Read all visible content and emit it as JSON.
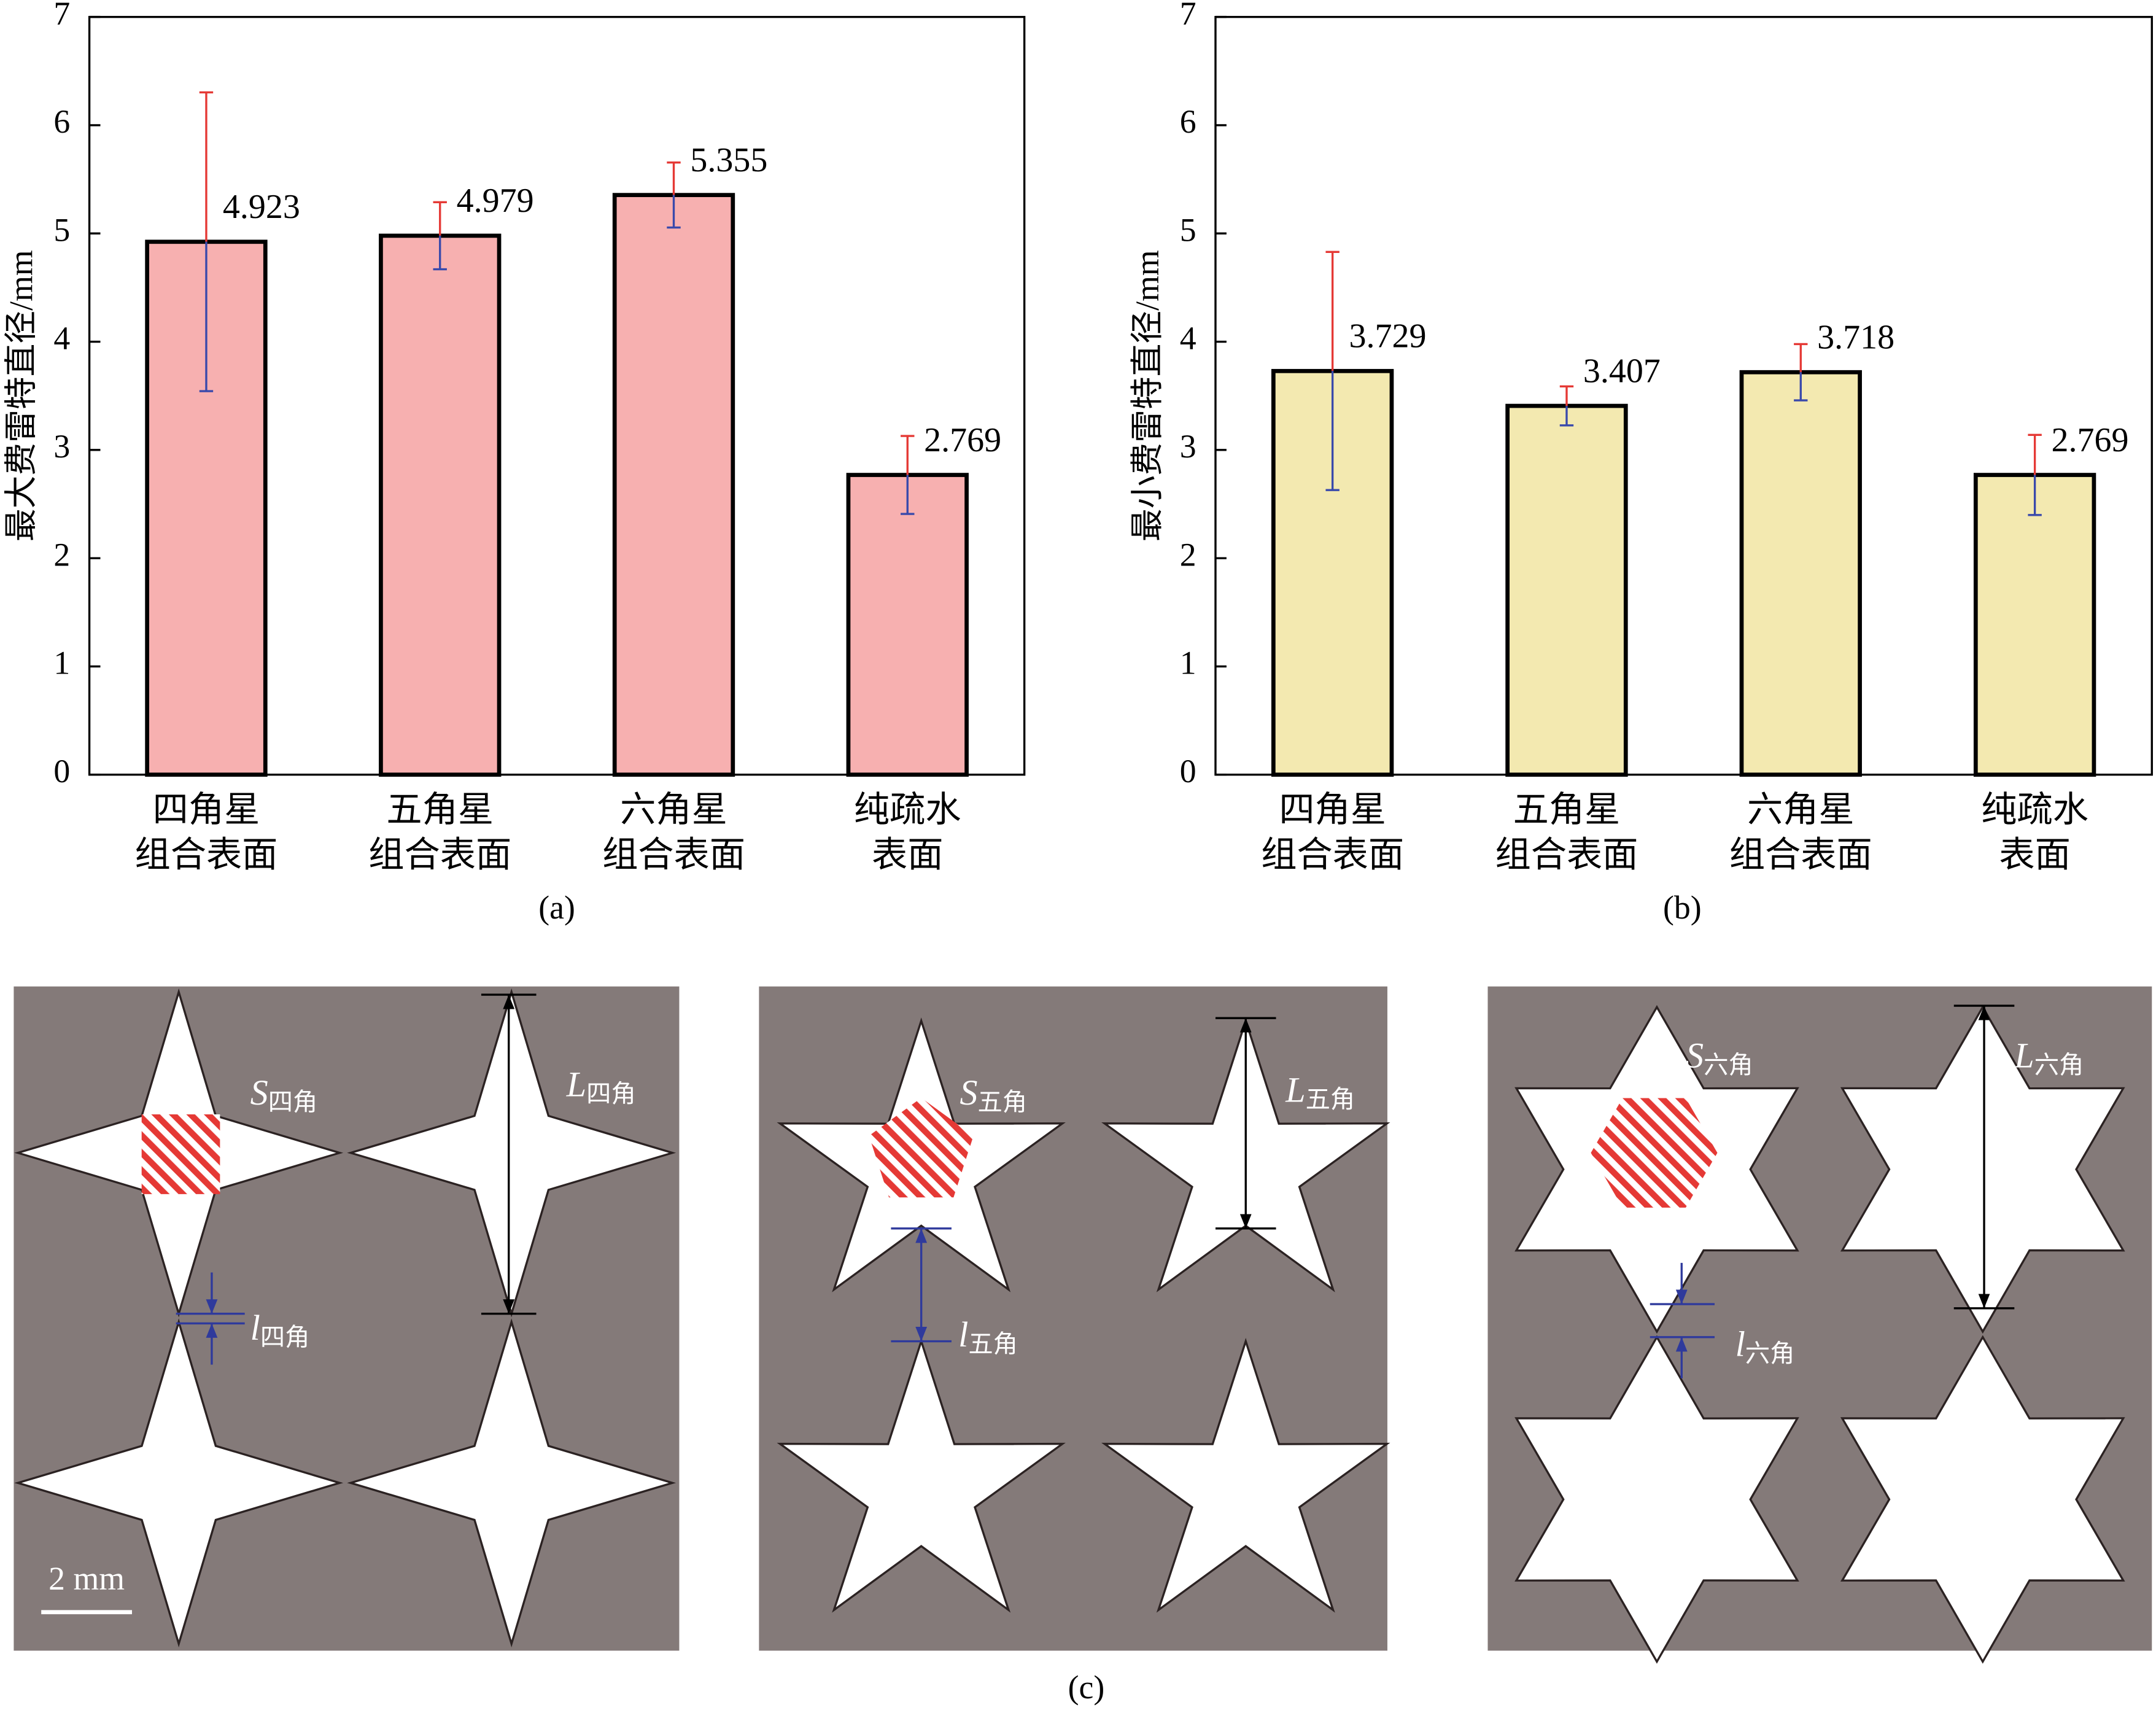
{
  "chart_data": [
    {
      "type": "bar",
      "ylabel": "最大费雷特直径/mm",
      "caption": "(a)",
      "categories": [
        [
          "四角星",
          "组合表面"
        ],
        [
          "五角星",
          "组合表面"
        ],
        [
          "六角星",
          "组合表面"
        ],
        [
          "纯疏水",
          "表面"
        ]
      ],
      "values": [
        4.923,
        4.979,
        5.355,
        2.769
      ],
      "errors": [
        1.38,
        0.31,
        0.3,
        0.36
      ],
      "color": "#f7b0b0",
      "error_colors": [
        "#e53935",
        "#3949ab"
      ],
      "ylim": [
        0,
        7
      ],
      "yticks": [
        0,
        1,
        2,
        3,
        4,
        5,
        6,
        7
      ]
    },
    {
      "type": "bar",
      "ylabel": "最小费雷特直径/mm",
      "caption": "(b)",
      "categories": [
        [
          "四角星",
          "组合表面"
        ],
        [
          "五角星",
          "组合表面"
        ],
        [
          "六角星",
          "组合表面"
        ],
        [
          "纯疏水",
          "表面"
        ]
      ],
      "values": [
        3.729,
        3.407,
        3.718,
        2.769
      ],
      "errors": [
        1.1,
        0.18,
        0.26,
        0.37
      ],
      "color": "#f3e9b0",
      "error_colors": [
        "#e53935",
        "#3949ab"
      ],
      "ylim": [
        0,
        7
      ],
      "yticks": [
        0,
        1,
        2,
        3,
        4,
        5,
        6,
        7
      ]
    }
  ],
  "diagram": {
    "panels": [
      {
        "S": {
          "symbol": "S",
          "subscript": "四角"
        },
        "L": {
          "symbol": "L",
          "subscript": "四角"
        },
        "l": {
          "symbol": "l",
          "subscript": "四角"
        }
      },
      {
        "S": {
          "symbol": "S",
          "subscript": "五角"
        },
        "L": {
          "symbol": "L",
          "subscript": "五角"
        },
        "l": {
          "symbol": "l",
          "subscript": "五角"
        }
      },
      {
        "S": {
          "symbol": "S",
          "subscript": "六角"
        },
        "L": {
          "symbol": "L",
          "subscript": "六角"
        },
        "l": {
          "symbol": "l",
          "subscript": "六角"
        }
      }
    ],
    "scale_bar": "2 mm",
    "caption": "(c)"
  }
}
